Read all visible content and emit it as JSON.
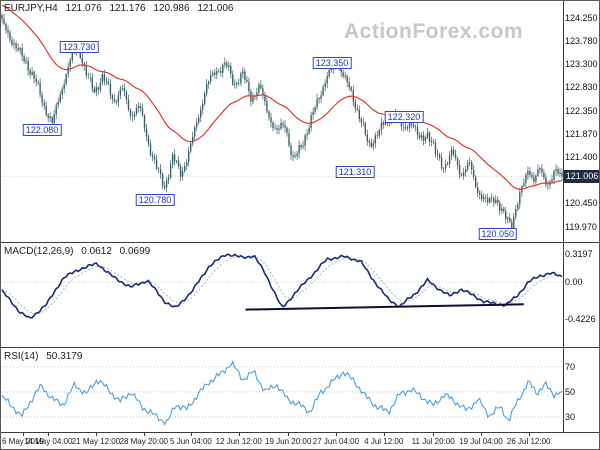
{
  "watermark": "ActionForex.com",
  "colors": {
    "candle": "#3d5e66",
    "ma": "#e03a2f",
    "macd_line": "#1a2a7a",
    "macd_signal": "#b9b9b9",
    "trendline": "#0d1038",
    "rsi_line": "#4d9fdd",
    "callout": "#2f49c8",
    "price_tag_bg": "#1f2940",
    "grid_dotted": "#c9c9c9",
    "axis_text": "#111111"
  },
  "chart_data": [
    {
      "type": "candlestick",
      "symbol": "EURJPY,H4",
      "ohlc": {
        "open": "121.076",
        "high": "121.176",
        "low": "120.986",
        "close": "121.006"
      },
      "current_price": 121.006,
      "current_price_label": "121.006",
      "ylim": [
        119.66,
        124.6
      ],
      "y_ticks": [
        124.25,
        123.78,
        123.3,
        122.83,
        122.35,
        121.87,
        121.4,
        120.45,
        119.97
      ],
      "ma_note": "red moving average overlay",
      "price_path": [
        [
          0.0,
          124.15
        ],
        [
          0.015,
          123.85
        ],
        [
          0.03,
          123.55
        ],
        [
          0.045,
          123.3
        ],
        [
          0.06,
          122.95
        ],
        [
          0.075,
          122.45
        ],
        [
          0.09,
          122.08
        ],
        [
          0.105,
          122.75
        ],
        [
          0.12,
          123.3
        ],
        [
          0.135,
          123.73
        ],
        [
          0.15,
          123.1
        ],
        [
          0.165,
          122.75
        ],
        [
          0.18,
          123.05
        ],
        [
          0.2,
          122.55
        ],
        [
          0.215,
          122.8
        ],
        [
          0.23,
          122.25
        ],
        [
          0.245,
          122.45
        ],
        [
          0.26,
          121.75
        ],
        [
          0.275,
          121.2
        ],
        [
          0.29,
          120.78
        ],
        [
          0.305,
          121.4
        ],
        [
          0.32,
          121.05
        ],
        [
          0.335,
          121.55
        ],
        [
          0.35,
          122.2
        ],
        [
          0.365,
          122.85
        ],
        [
          0.38,
          123.15
        ],
        [
          0.4,
          123.3
        ],
        [
          0.415,
          122.9
        ],
        [
          0.43,
          123.1
        ],
        [
          0.445,
          122.6
        ],
        [
          0.46,
          122.85
        ],
        [
          0.475,
          122.3
        ],
        [
          0.49,
          121.9
        ],
        [
          0.505,
          122.1
        ],
        [
          0.52,
          121.31
        ],
        [
          0.535,
          121.65
        ],
        [
          0.55,
          122.1
        ],
        [
          0.565,
          122.6
        ],
        [
          0.58,
          123.05
        ],
        [
          0.6,
          123.35
        ],
        [
          0.62,
          122.8
        ],
        [
          0.64,
          122.2
        ],
        [
          0.655,
          121.6
        ],
        [
          0.67,
          121.9
        ],
        [
          0.685,
          122.1
        ],
        [
          0.7,
          122.32
        ],
        [
          0.715,
          121.95
        ],
        [
          0.73,
          122.15
        ],
        [
          0.745,
          121.75
        ],
        [
          0.76,
          121.9
        ],
        [
          0.775,
          121.45
        ],
        [
          0.79,
          121.2
        ],
        [
          0.805,
          121.5
        ],
        [
          0.82,
          121.05
        ],
        [
          0.835,
          121.25
        ],
        [
          0.85,
          120.7
        ],
        [
          0.865,
          120.45
        ],
        [
          0.88,
          120.6
        ],
        [
          0.895,
          120.2
        ],
        [
          0.91,
          120.05
        ],
        [
          0.925,
          120.6
        ],
        [
          0.94,
          121.2
        ],
        [
          0.95,
          120.9
        ],
        [
          0.96,
          121.15
        ],
        [
          0.975,
          120.85
        ],
        [
          0.99,
          121.1
        ],
        [
          1.0,
          121.006
        ]
      ],
      "annotations": [
        {
          "label": "123.730",
          "x": 0.139,
          "y": 123.66
        },
        {
          "label": "122.080",
          "x": 0.073,
          "y": 121.95
        },
        {
          "label": "120.780",
          "x": 0.274,
          "y": 120.52
        },
        {
          "label": "123.350",
          "x": 0.589,
          "y": 123.33
        },
        {
          "label": "121.310",
          "x": 0.63,
          "y": 121.1
        },
        {
          "label": "122.320",
          "x": 0.717,
          "y": 122.22
        },
        {
          "label": "120.050",
          "x": 0.884,
          "y": 119.82
        }
      ],
      "x_ticks": [
        {
          "t": 0.039,
          "label": "6 May 2019"
        },
        {
          "t": 0.084,
          "label": "14 May 04:00"
        },
        {
          "t": 0.169,
          "label": "21 May 12:00"
        },
        {
          "t": 0.254,
          "label": "28 May 20:00"
        },
        {
          "t": 0.338,
          "label": "5 Jun 04:00"
        },
        {
          "t": 0.423,
          "label": "12 Jun 12:00"
        },
        {
          "t": 0.511,
          "label": "19 Jun 20:00"
        },
        {
          "t": 0.596,
          "label": "27 Jun 04:00"
        },
        {
          "t": 0.681,
          "label": "4 Jul 12:00"
        },
        {
          "t": 0.769,
          "label": "11 Jul 20:00"
        },
        {
          "t": 0.854,
          "label": "19 Jul 04:00"
        },
        {
          "t": 0.939,
          "label": "26 Jul 12:00"
        }
      ]
    },
    {
      "type": "line",
      "name": "MACD(12,26,9)",
      "values": [
        "0.0612",
        "0.0699"
      ],
      "ylim": [
        -0.742,
        0.445
      ],
      "levels": [
        {
          "v": 0.3197,
          "label": "0.3197",
          "line": false
        },
        {
          "v": 0.0,
          "label": "0.00",
          "line": true
        },
        {
          "v": -0.4226,
          "label": "-0.4226",
          "line": false
        }
      ],
      "path": [
        [
          0.0,
          -0.1
        ],
        [
          0.03,
          -0.33
        ],
        [
          0.05,
          -0.4226
        ],
        [
          0.08,
          -0.25
        ],
        [
          0.11,
          0.05
        ],
        [
          0.14,
          0.15
        ],
        [
          0.17,
          0.21
        ],
        [
          0.2,
          0.05
        ],
        [
          0.23,
          -0.06
        ],
        [
          0.26,
          0.02
        ],
        [
          0.29,
          -0.22
        ],
        [
          0.31,
          -0.3
        ],
        [
          0.34,
          -0.1
        ],
        [
          0.37,
          0.18
        ],
        [
          0.4,
          0.32
        ],
        [
          0.43,
          0.28
        ],
        [
          0.45,
          0.3
        ],
        [
          0.47,
          0.1
        ],
        [
          0.5,
          -0.3
        ],
        [
          0.53,
          -0.08
        ],
        [
          0.56,
          0.12
        ],
        [
          0.58,
          0.26
        ],
        [
          0.61,
          0.29
        ],
        [
          0.64,
          0.24
        ],
        [
          0.66,
          0.05
        ],
        [
          0.69,
          -0.2
        ],
        [
          0.71,
          -0.28
        ],
        [
          0.74,
          -0.12
        ],
        [
          0.76,
          0.02
        ],
        [
          0.78,
          -0.08
        ],
        [
          0.8,
          -0.16
        ],
        [
          0.82,
          -0.08
        ],
        [
          0.84,
          -0.15
        ],
        [
          0.86,
          -0.22
        ],
        [
          0.88,
          -0.25
        ],
        [
          0.9,
          -0.26
        ],
        [
          0.92,
          -0.16
        ],
        [
          0.94,
          0.0
        ],
        [
          0.96,
          0.07
        ],
        [
          0.98,
          0.1
        ],
        [
          1.0,
          0.0612
        ]
      ],
      "trendline": {
        "x1": 0.435,
        "y1": -0.315,
        "x2": 0.93,
        "y2": -0.255
      }
    },
    {
      "type": "line",
      "name": "RSI(14)",
      "value": "50.3179",
      "ylim": [
        18,
        85
      ],
      "levels": [
        {
          "v": 70,
          "label": "70",
          "line": true
        },
        {
          "v": 50,
          "label": "50",
          "line": true
        },
        {
          "v": 30,
          "label": "30",
          "line": true
        }
      ],
      "path": [
        [
          0.0,
          46
        ],
        [
          0.02,
          38
        ],
        [
          0.035,
          30
        ],
        [
          0.05,
          42
        ],
        [
          0.07,
          55
        ],
        [
          0.09,
          44
        ],
        [
          0.11,
          40
        ],
        [
          0.13,
          56
        ],
        [
          0.15,
          48
        ],
        [
          0.17,
          60
        ],
        [
          0.19,
          52
        ],
        [
          0.21,
          42
        ],
        [
          0.23,
          50
        ],
        [
          0.25,
          38
        ],
        [
          0.27,
          32
        ],
        [
          0.295,
          25
        ],
        [
          0.31,
          40
        ],
        [
          0.33,
          36
        ],
        [
          0.35,
          48
        ],
        [
          0.37,
          58
        ],
        [
          0.39,
          64
        ],
        [
          0.41,
          73
        ],
        [
          0.43,
          60
        ],
        [
          0.45,
          66
        ],
        [
          0.47,
          50
        ],
        [
          0.49,
          56
        ],
        [
          0.51,
          44
        ],
        [
          0.53,
          40
        ],
        [
          0.55,
          34
        ],
        [
          0.57,
          50
        ],
        [
          0.59,
          58
        ],
        [
          0.61,
          66
        ],
        [
          0.63,
          58
        ],
        [
          0.65,
          46
        ],
        [
          0.67,
          38
        ],
        [
          0.69,
          34
        ],
        [
          0.71,
          48
        ],
        [
          0.73,
          52
        ],
        [
          0.75,
          46
        ],
        [
          0.77,
          39
        ],
        [
          0.79,
          48
        ],
        [
          0.81,
          42
        ],
        [
          0.83,
          35
        ],
        [
          0.85,
          44
        ],
        [
          0.87,
          31
        ],
        [
          0.89,
          38
        ],
        [
          0.905,
          27
        ],
        [
          0.92,
          42
        ],
        [
          0.94,
          58
        ],
        [
          0.955,
          49
        ],
        [
          0.97,
          56
        ],
        [
          0.985,
          48
        ],
        [
          1.0,
          50.3179
        ]
      ]
    }
  ]
}
